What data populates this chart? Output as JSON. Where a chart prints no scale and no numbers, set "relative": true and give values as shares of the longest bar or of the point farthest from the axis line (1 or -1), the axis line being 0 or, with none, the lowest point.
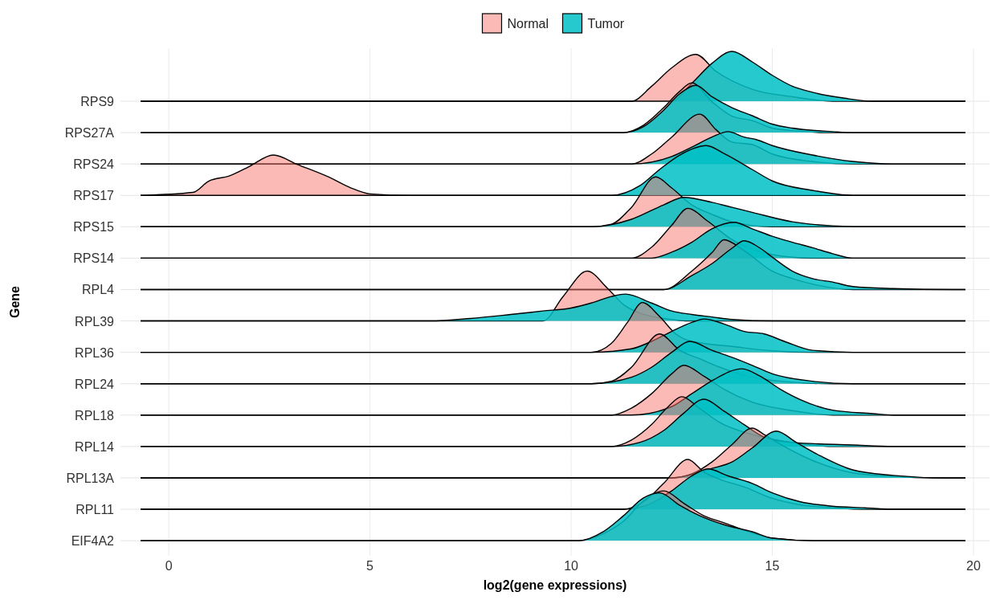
{
  "chart_data": [
    {
      "type": "area",
      "relative": true,
      "ylabel": "RPS9",
      "xlim": [
        -1.2,
        20.4
      ],
      "xticks": [
        0,
        5,
        10,
        15,
        20
      ],
      "tick_labels": false,
      "grid": "x",
      "legend": "top",
      "annotations": [
        "Gene"
      ],
      "series": [
        {
          "name": "Normal",
          "color": "#f8766d",
          "x": [
            -0.7,
            11.5,
            12,
            12.5,
            13.1,
            13.6,
            14.5,
            15.5,
            16.5,
            19.8
          ],
          "values": [
            0,
            0,
            0.3,
            0.67,
            0.94,
            0.6,
            0.24,
            0.09,
            0,
            0
          ]
        },
        {
          "name": "Tumor",
          "color": "#00bfc4",
          "x": [
            -0.7,
            12.5,
            13,
            13.5,
            14,
            14.5,
            15,
            15.5,
            16,
            16.8,
            17.5,
            19.8
          ],
          "values": [
            0,
            0,
            0.36,
            0.76,
            1,
            0.79,
            0.52,
            0.3,
            0.18,
            0.06,
            0,
            0
          ]
        }
      ]
    },
    {
      "type": "area",
      "relative": true,
      "ylabel": "RPS27A",
      "xlim": [
        -1.2,
        20.4
      ],
      "xticks": [
        0,
        5,
        10,
        15,
        20
      ],
      "tick_labels": false,
      "grid": "x",
      "series": [
        {
          "color": "#f8766d",
          "x": [
            -0.7,
            11.3,
            11.8,
            12.3,
            12.7,
            13,
            13.5,
            14,
            14.5,
            15,
            15.7,
            16.3,
            19.8
          ],
          "values": [
            0,
            0,
            0.15,
            0.5,
            0.83,
            1,
            0.62,
            0.33,
            0.24,
            0.09,
            0.03,
            0,
            0
          ]
        },
        {
          "color": "#00bfc4",
          "x": [
            -0.7,
            11.3,
            11.8,
            12.3,
            12.7,
            13.1,
            13.5,
            14,
            14.5,
            15,
            15.5,
            16.5,
            17,
            19.8
          ],
          "values": [
            0,
            0,
            0.12,
            0.45,
            0.78,
            0.95,
            0.72,
            0.5,
            0.34,
            0.17,
            0.09,
            0.02,
            0,
            0
          ]
        }
      ]
    },
    {
      "type": "area",
      "relative": true,
      "ylabel": "RPS24",
      "xlim": [
        -1.2,
        20.4
      ],
      "xticks": [
        0,
        5,
        10,
        15,
        20
      ],
      "tick_labels": false,
      "grid": "x",
      "series": [
        {
          "color": "#f8766d",
          "x": [
            -0.7,
            11.5,
            12,
            12.5,
            13.2,
            13.6,
            14,
            14.5,
            15,
            16,
            17,
            19.8
          ],
          "values": [
            0,
            0,
            0.2,
            0.54,
            1,
            0.69,
            0.44,
            0.39,
            0.2,
            0.05,
            0,
            0
          ]
        },
        {
          "color": "#00bfc4",
          "x": [
            -0.7,
            11.5,
            12.5,
            13,
            13.5,
            13.9,
            14.3,
            14.6,
            15,
            16,
            17,
            18,
            19.8
          ],
          "values": [
            0,
            0,
            0.15,
            0.34,
            0.54,
            0.65,
            0.54,
            0.49,
            0.37,
            0.18,
            0.05,
            0,
            0
          ]
        }
      ]
    },
    {
      "type": "area",
      "relative": true,
      "ylabel": "RPS17",
      "xlim": [
        -1.2,
        20.4
      ],
      "xticks": [
        0,
        5,
        10,
        15,
        20
      ],
      "tick_labels": false,
      "grid": "x",
      "series": [
        {
          "color": "#f8766d",
          "x": [
            -0.7,
            0.6,
            1,
            1.5,
            2,
            2.6,
            3.2,
            4,
            4.5,
            5,
            6,
            19.8
          ],
          "values": [
            0,
            0.06,
            0.29,
            0.39,
            0.58,
            0.81,
            0.62,
            0.36,
            0.16,
            0.03,
            0,
            0
          ]
        },
        {
          "color": "#00bfc4",
          "x": [
            -0.7,
            11,
            11.7,
            12.2,
            12.7,
            13.36,
            13.8,
            14.5,
            15,
            16,
            17,
            19.8
          ],
          "values": [
            0,
            0,
            0.19,
            0.52,
            0.81,
            1,
            0.84,
            0.52,
            0.29,
            0.1,
            0,
            0
          ]
        }
      ]
    },
    {
      "type": "area",
      "relative": true,
      "ylabel": "RPS15",
      "xlim": [
        -1.2,
        20.4
      ],
      "xticks": [
        0,
        5,
        10,
        15,
        20
      ],
      "tick_labels": false,
      "grid": "x",
      "series": [
        {
          "color": "#f8766d",
          "x": [
            -0.7,
            10.5,
            11,
            11.5,
            12.1,
            12.5,
            13,
            13.5,
            14,
            15,
            19.8
          ],
          "values": [
            0,
            0,
            0.05,
            0.39,
            1,
            0.78,
            0.44,
            0.25,
            0.1,
            0,
            0
          ]
        },
        {
          "color": "#00bfc4",
          "x": [
            -0.7,
            10.5,
            11.5,
            12.3,
            12.8,
            13.5,
            14,
            14.5,
            15.5,
            16.5,
            17.5,
            19.8
          ],
          "values": [
            0,
            0,
            0.15,
            0.44,
            0.59,
            0.49,
            0.39,
            0.29,
            0.1,
            0.02,
            0,
            0
          ]
        }
      ]
    },
    {
      "type": "area",
      "relative": true,
      "ylabel": "RPS14",
      "xlim": [
        -1.2,
        20.4
      ],
      "xticks": [
        0,
        5,
        10,
        15,
        20
      ],
      "tick_labels": false,
      "grid": "x",
      "series": [
        {
          "color": "#f8766d",
          "x": [
            -0.7,
            11.5,
            12,
            12.5,
            12.9,
            13.4,
            14,
            14.5,
            15,
            16,
            19.8
          ],
          "values": [
            0,
            0,
            0.22,
            0.66,
            1,
            0.74,
            0.37,
            0.18,
            0.07,
            0,
            0
          ]
        },
        {
          "color": "#00bfc4",
          "x": [
            -0.7,
            12,
            12.5,
            13,
            13.5,
            14.05,
            14.5,
            15,
            15.5,
            16,
            16.5,
            17,
            19.8
          ],
          "values": [
            0,
            0,
            0.12,
            0.32,
            0.59,
            0.72,
            0.59,
            0.44,
            0.32,
            0.21,
            0.09,
            0,
            0
          ]
        }
      ]
    },
    {
      "type": "area",
      "relative": true,
      "ylabel": "RPL4",
      "xlim": [
        -1.2,
        20.4
      ],
      "xticks": [
        0,
        5,
        10,
        15,
        20
      ],
      "tick_labels": false,
      "grid": "x",
      "series": [
        {
          "color": "#f8766d",
          "x": [
            -0.7,
            12.3,
            13,
            13.5,
            13.8,
            14.3,
            15,
            15.5,
            16,
            17,
            19.8
          ],
          "values": [
            0,
            0,
            0.37,
            0.74,
            1,
            0.78,
            0.37,
            0.22,
            0.11,
            0,
            0
          ]
        },
        {
          "color": "#00bfc4",
          "x": [
            -0.7,
            12.3,
            13,
            13.5,
            14,
            14.3,
            14.7,
            15,
            15.5,
            16,
            16.5,
            17,
            18,
            19.5,
            19.8
          ],
          "values": [
            0,
            0,
            0.28,
            0.52,
            0.83,
            0.98,
            0.83,
            0.65,
            0.37,
            0.22,
            0.15,
            0.06,
            0.02,
            0,
            0
          ]
        }
      ]
    },
    {
      "type": "area",
      "relative": true,
      "ylabel": "RPL39",
      "xlim": [
        -1.2,
        20.4
      ],
      "xticks": [
        0,
        5,
        10,
        15,
        20
      ],
      "tick_labels": false,
      "grid": "x",
      "series": [
        {
          "color": "#f8766d",
          "x": [
            -0.7,
            9.3,
            9.8,
            10.4,
            10.9,
            11.3,
            11.7,
            12.3,
            13,
            19.8
          ],
          "values": [
            0,
            0,
            0.49,
            1,
            0.66,
            0.33,
            0.16,
            0.05,
            0,
            0
          ]
        },
        {
          "color": "#00bfc4",
          "x": [
            -0.7,
            6.5,
            7.5,
            8.5,
            9.3,
            10,
            10.5,
            11,
            11.35,
            12,
            12.5,
            13,
            13.5,
            14,
            15,
            19.8
          ],
          "values": [
            0,
            0,
            0.05,
            0.13,
            0.2,
            0.26,
            0.36,
            0.49,
            0.54,
            0.36,
            0.2,
            0.13,
            0.08,
            0.03,
            0,
            0
          ]
        }
      ]
    },
    {
      "type": "area",
      "relative": true,
      "ylabel": "RPL36",
      "xlim": [
        -1.2,
        20.4
      ],
      "xticks": [
        0,
        5,
        10,
        15,
        20
      ],
      "tick_labels": false,
      "grid": "x",
      "series": [
        {
          "color": "#f8766d",
          "x": [
            -0.7,
            10.5,
            11,
            11.4,
            11.77,
            12.2,
            12.6,
            13,
            14,
            15,
            16,
            19.8
          ],
          "values": [
            0,
            0,
            0.18,
            0.6,
            1,
            0.72,
            0.37,
            0.22,
            0.12,
            0.03,
            0,
            0
          ]
        },
        {
          "color": "#00bfc4",
          "x": [
            -0.7,
            10.5,
            11.5,
            12,
            12.5,
            13,
            13.3,
            13.8,
            14.3,
            14.8,
            15.3,
            16,
            17,
            19.8
          ],
          "values": [
            0,
            0,
            0.07,
            0.22,
            0.42,
            0.6,
            0.67,
            0.57,
            0.42,
            0.37,
            0.22,
            0.04,
            0,
            0
          ]
        }
      ]
    },
    {
      "type": "area",
      "relative": true,
      "ylabel": "RPL24",
      "xlim": [
        -1.2,
        20.4
      ],
      "xticks": [
        0,
        5,
        10,
        15,
        20
      ],
      "tick_labels": false,
      "grid": "x",
      "series": [
        {
          "color": "#f8766d",
          "x": [
            -0.7,
            10.5,
            11,
            11.5,
            12.2,
            12.7,
            13.2,
            13.7,
            14.5,
            15.5,
            16.5,
            19.8
          ],
          "values": [
            0,
            0,
            0.05,
            0.33,
            1,
            0.67,
            0.5,
            0.33,
            0.13,
            0.03,
            0,
            0
          ]
        },
        {
          "color": "#00bfc4",
          "x": [
            -0.7,
            10.5,
            11.5,
            12,
            12.5,
            12.95,
            13.5,
            14,
            14.5,
            15,
            16,
            17,
            19.8
          ],
          "values": [
            0,
            0,
            0.13,
            0.33,
            0.63,
            0.85,
            0.67,
            0.53,
            0.37,
            0.2,
            0.05,
            0,
            0
          ]
        }
      ]
    },
    {
      "type": "area",
      "relative": true,
      "ylabel": "RPL18",
      "xlim": [
        -1.2,
        20.4
      ],
      "xticks": [
        0,
        5,
        10,
        15,
        20
      ],
      "tick_labels": false,
      "grid": "x",
      "series": [
        {
          "color": "#f8766d",
          "x": [
            -0.7,
            11,
            11.5,
            12,
            12.5,
            12.8,
            13.3,
            13.8,
            14.5,
            15.5,
            16.5,
            19.8
          ],
          "values": [
            0,
            0,
            0.14,
            0.43,
            0.83,
            1,
            0.78,
            0.52,
            0.26,
            0.09,
            0,
            0
          ]
        },
        {
          "color": "#00bfc4",
          "x": [
            -0.7,
            11.5,
            12.5,
            13,
            13.5,
            14.25,
            14.7,
            15.2,
            15.7,
            16.5,
            17.5,
            18,
            19.8
          ],
          "values": [
            0,
            0,
            0.17,
            0.43,
            0.69,
            0.93,
            0.78,
            0.52,
            0.31,
            0.1,
            0.03,
            0,
            0
          ]
        }
      ]
    },
    {
      "type": "area",
      "relative": true,
      "ylabel": "RPL14",
      "xlim": [
        -1.2,
        20.4
      ],
      "xticks": [
        0,
        5,
        10,
        15,
        20
      ],
      "tick_labels": false,
      "grid": "x",
      "series": [
        {
          "color": "#f8766d",
          "x": [
            -0.7,
            11,
            11.5,
            12,
            12.4,
            12.75,
            13.2,
            13.7,
            14.5,
            15.5,
            16.5,
            19.8
          ],
          "values": [
            0,
            0,
            0.13,
            0.44,
            0.79,
            1,
            0.76,
            0.48,
            0.24,
            0.08,
            0,
            0
          ]
        },
        {
          "color": "#00bfc4",
          "x": [
            -0.7,
            11,
            11.7,
            12.3,
            12.8,
            13.3,
            13.8,
            14.3,
            14.8,
            15.5,
            17,
            18,
            19.8
          ],
          "values": [
            0,
            0,
            0.08,
            0.32,
            0.67,
            0.95,
            0.71,
            0.44,
            0.19,
            0.08,
            0.03,
            0,
            0
          ]
        }
      ]
    },
    {
      "type": "area",
      "relative": true,
      "ylabel": "RPL13A",
      "xlim": [
        -1.2,
        20.4
      ],
      "xticks": [
        0,
        5,
        10,
        15,
        20
      ],
      "tick_labels": false,
      "grid": "x",
      "series": [
        {
          "color": "#f8766d",
          "x": [
            -0.7,
            12.5,
            13,
            13.5,
            14,
            14.5,
            14.8,
            15.3,
            16,
            17,
            18,
            19,
            19.8
          ],
          "values": [
            0,
            0,
            0.08,
            0.32,
            0.67,
            1,
            0.87,
            0.63,
            0.35,
            0.1,
            0.03,
            0,
            0
          ]
        },
        {
          "color": "#00bfc4",
          "x": [
            -0.7,
            12.5,
            13.5,
            14,
            14.5,
            15.1,
            15.6,
            16.2,
            17,
            18,
            19.3,
            19.8
          ],
          "values": [
            0,
            0,
            0.19,
            0.32,
            0.6,
            0.94,
            0.71,
            0.44,
            0.16,
            0.05,
            0,
            0
          ]
        }
      ]
    },
    {
      "type": "area",
      "relative": true,
      "ylabel": "RPL11",
      "xlim": [
        -1.2,
        20.4
      ],
      "xticks": [
        0,
        5,
        10,
        15,
        20
      ],
      "tick_labels": false,
      "grid": "x",
      "series": [
        {
          "color": "#f8766d",
          "x": [
            -0.7,
            11.3,
            11.8,
            12.3,
            12.9,
            13.3,
            13.7,
            14.3,
            15,
            15.7,
            16.5,
            17.5,
            19.8
          ],
          "values": [
            0,
            0,
            0.15,
            0.52,
            1,
            0.75,
            0.6,
            0.45,
            0.22,
            0.09,
            0.03,
            0,
            0
          ]
        },
        {
          "color": "#00bfc4",
          "x": [
            -0.7,
            11.3,
            12,
            12.5,
            13,
            13.4,
            13.9,
            14.5,
            15,
            15.7,
            16.5,
            17.3,
            18,
            19.8
          ],
          "values": [
            0,
            0,
            0.12,
            0.37,
            0.67,
            0.81,
            0.67,
            0.52,
            0.33,
            0.15,
            0.06,
            0.03,
            0,
            0
          ]
        }
      ]
    },
    {
      "type": "area",
      "relative": true,
      "ylabel": "EIF4A2",
      "xlim": [
        -1.2,
        20.4
      ],
      "xticks": [
        0,
        5,
        10,
        15,
        20
      ],
      "tick_labels": "x",
      "xlabel": "log2(gene expressions)",
      "grid": "x",
      "series": [
        {
          "color": "#f8766d",
          "x": [
            -0.7,
            10.2,
            10.8,
            11.3,
            11.8,
            12.3,
            12.8,
            13.3,
            13.8,
            14.3,
            15,
            16,
            19.8
          ],
          "values": [
            0,
            0,
            0.14,
            0.39,
            0.8,
            1,
            0.75,
            0.5,
            0.36,
            0.21,
            0.05,
            0,
            0
          ]
        },
        {
          "color": "#00bfc4",
          "x": [
            -0.7,
            10.2,
            10.8,
            11.3,
            11.8,
            12.2,
            12.7,
            13.2,
            13.8,
            14.5,
            15,
            16,
            19.8
          ],
          "values": [
            0,
            0,
            0.18,
            0.5,
            0.86,
            0.96,
            0.71,
            0.5,
            0.32,
            0.18,
            0.05,
            0,
            0
          ]
        }
      ]
    }
  ]
}
